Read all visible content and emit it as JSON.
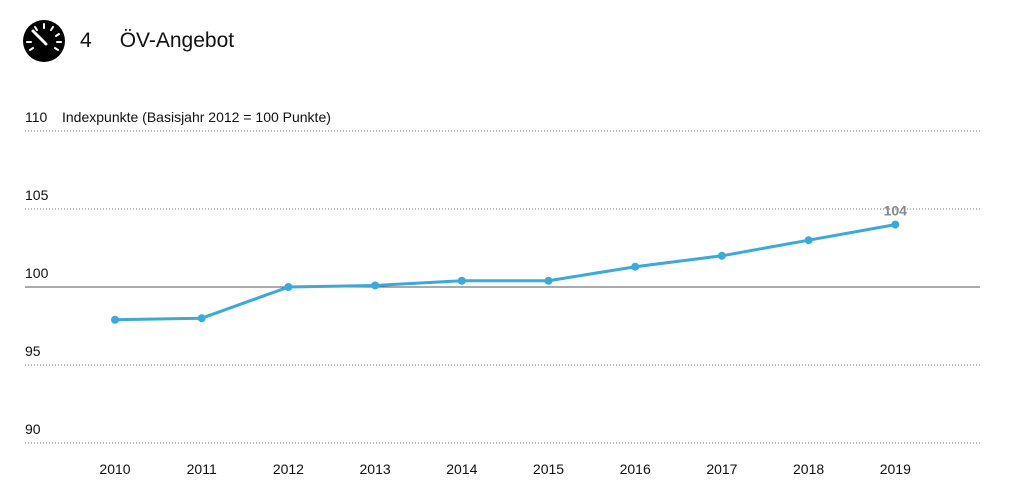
{
  "header": {
    "number": "4",
    "title": "ÖV-Angebot",
    "icon": "speedometer-icon"
  },
  "chart_data": {
    "type": "line",
    "title": "ÖV-Angebot",
    "ylabel": "Indexpunkte (Basisjahr 2012 = 100 Punkte)",
    "xlabel": "",
    "categories": [
      "2010",
      "2011",
      "2012",
      "2013",
      "2014",
      "2015",
      "2016",
      "2017",
      "2018",
      "2019"
    ],
    "values": [
      97.9,
      98.0,
      100.0,
      100.1,
      100.4,
      100.4,
      101.3,
      102.0,
      103.0,
      104.0
    ],
    "ylim": [
      90,
      110
    ],
    "yticks": [
      "90",
      "95",
      "100",
      "105",
      "110"
    ],
    "grid": "horizontal dotted, solid at 100",
    "data_labels": [
      {
        "category": "2019",
        "text": "104"
      }
    ],
    "color": "#3aa9dc"
  }
}
